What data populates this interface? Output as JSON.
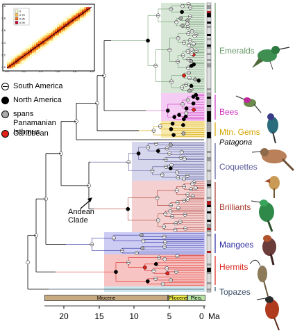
{
  "legend": [
    {
      "label": "South America",
      "style": "half",
      "color": "#ffffff"
    },
    {
      "label": "North America",
      "style": "solid",
      "color": "#000000"
    },
    {
      "label": "spans Panamanian Isthmus",
      "style": "solid",
      "color": "#aaaaaa"
    },
    {
      "label": "Caribbean",
      "style": "solid",
      "color": "#e32119"
    }
  ],
  "clades": [
    {
      "name": "Emeralds",
      "color": "#6a9a6a"
    },
    {
      "name": "Bees",
      "color": "#cc2fc0"
    },
    {
      "name": "Mtn. Gems",
      "color": "#d3a400"
    },
    {
      "name": "Patagona",
      "color": "#000000"
    },
    {
      "name": "Coquettes",
      "color": "#5b5b9a"
    },
    {
      "name": "Brilliants",
      "color": "#a8392c"
    },
    {
      "name": "Mangoes",
      "color": "#2828a0"
    },
    {
      "name": "Hermits",
      "color": "#d9241c"
    },
    {
      "name": "Topazes",
      "color": "#3a4f66"
    }
  ],
  "annotation": {
    "line1": "Andean",
    "line2": "Clade"
  },
  "epochs": [
    "Miocene",
    "Pliocene",
    "Pleis."
  ],
  "epoch_colors": [
    "#c8aa80",
    "#f0ec48",
    "#b6e4a6"
  ],
  "axis": {
    "ticks": [
      "20",
      "15",
      "10",
      "5",
      "0"
    ],
    "unit": "Ma"
  },
  "inset": {
    "legend": [
      "0",
      "0.75",
      "0.95",
      "0.99"
    ],
    "xticks": [
      "0.0",
      "0.2",
      "0.4",
      "0.6",
      "0.8",
      "1.0"
    ],
    "yticks": [
      "0.0",
      "0.2",
      "0.4",
      "0.6",
      "0.8",
      "1.0"
    ]
  }
}
